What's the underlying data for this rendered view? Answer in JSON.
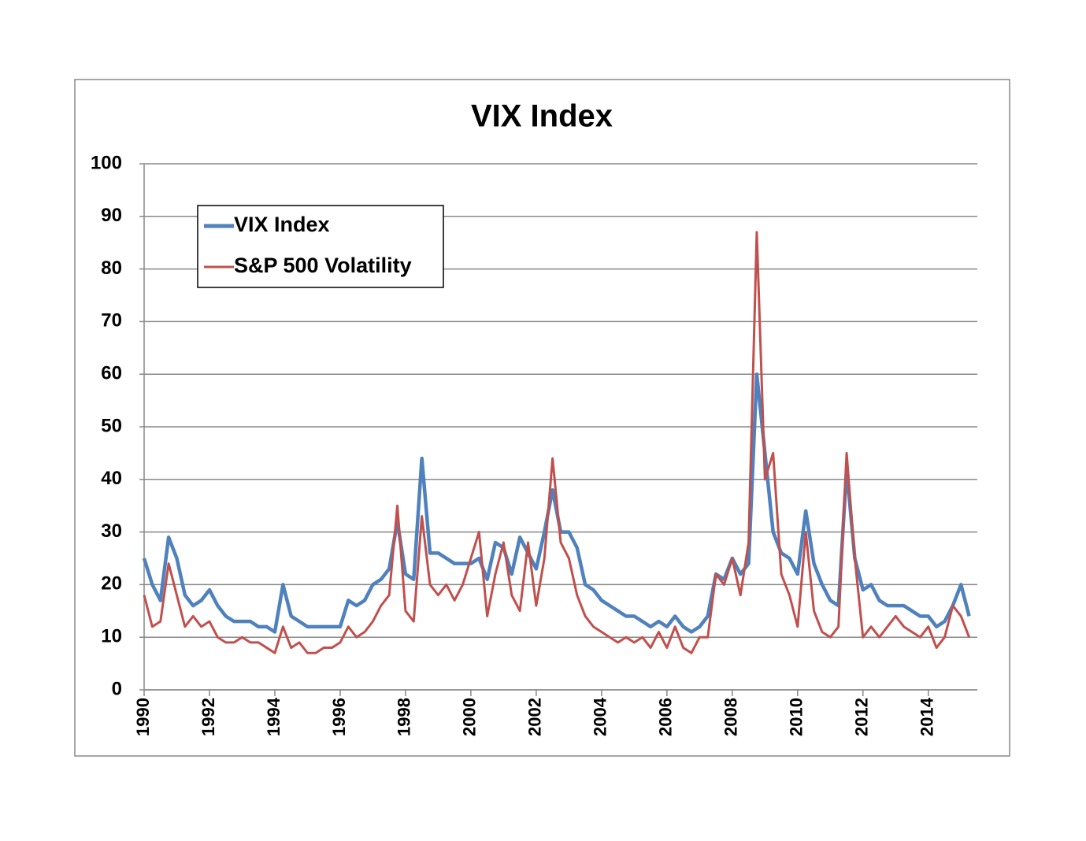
{
  "chart_data": {
    "type": "line",
    "title": "VIX Index",
    "x": [
      1990,
      1990.25,
      1990.5,
      1990.75,
      1991,
      1991.25,
      1991.5,
      1991.75,
      1992,
      1992.25,
      1992.5,
      1992.75,
      1993,
      1993.25,
      1993.5,
      1993.75,
      1994,
      1994.25,
      1994.5,
      1994.75,
      1995,
      1995.25,
      1995.5,
      1995.75,
      1996,
      1996.25,
      1996.5,
      1996.75,
      1997,
      1997.25,
      1997.5,
      1997.75,
      1998,
      1998.25,
      1998.5,
      1998.75,
      1999,
      1999.25,
      1999.5,
      1999.75,
      2000,
      2000.25,
      2000.5,
      2000.75,
      2001,
      2001.25,
      2001.5,
      2001.75,
      2002,
      2002.25,
      2002.5,
      2002.75,
      2003,
      2003.25,
      2003.5,
      2003.75,
      2004,
      2004.25,
      2004.5,
      2004.75,
      2005,
      2005.25,
      2005.5,
      2005.75,
      2006,
      2006.25,
      2006.5,
      2006.75,
      2007,
      2007.25,
      2007.5,
      2007.75,
      2008,
      2008.25,
      2008.5,
      2008.75,
      2009,
      2009.25,
      2009.5,
      2009.75,
      2010,
      2010.25,
      2010.5,
      2010.75,
      2011,
      2011.25,
      2011.5,
      2011.75,
      2012,
      2012.25,
      2012.5,
      2012.75,
      2013,
      2013.25,
      2013.5,
      2013.75,
      2014,
      2014.25,
      2014.5,
      2014.75,
      2015,
      2015.25
    ],
    "series": [
      {
        "name": "VIX Index",
        "color": "#4f81bd",
        "values": [
          25,
          20,
          17,
          29,
          25,
          18,
          16,
          17,
          19,
          16,
          14,
          13,
          13,
          13,
          12,
          12,
          11,
          20,
          14,
          13,
          12,
          12,
          12,
          12,
          12,
          17,
          16,
          17,
          20,
          21,
          23,
          32,
          22,
          21,
          44,
          26,
          26,
          25,
          24,
          24,
          24,
          25,
          21,
          28,
          27,
          22,
          29,
          26,
          23,
          30,
          38,
          30,
          30,
          27,
          20,
          19,
          17,
          16,
          15,
          14,
          14,
          13,
          12,
          13,
          12,
          14,
          12,
          11,
          12,
          14,
          22,
          21,
          25,
          22,
          24,
          60,
          45,
          30,
          26,
          25,
          22,
          34,
          24,
          20,
          17,
          16,
          42,
          25,
          19,
          20,
          17,
          16,
          16,
          16,
          15,
          14,
          14,
          12,
          13,
          16,
          20,
          14
        ]
      },
      {
        "name": "S&P 500 Volatility",
        "color": "#c0504d",
        "values": [
          18,
          12,
          13,
          24,
          18,
          12,
          14,
          12,
          13,
          10,
          9,
          9,
          10,
          9,
          9,
          8,
          7,
          12,
          8,
          9,
          7,
          7,
          8,
          8,
          9,
          12,
          10,
          11,
          13,
          16,
          18,
          35,
          15,
          13,
          33,
          20,
          18,
          20,
          17,
          20,
          25,
          30,
          14,
          22,
          28,
          18,
          15,
          28,
          16,
          25,
          44,
          28,
          25,
          18,
          14,
          12,
          11,
          10,
          9,
          10,
          9,
          10,
          8,
          11,
          8,
          12,
          8,
          7,
          10,
          10,
          22,
          20,
          25,
          18,
          28,
          87,
          40,
          45,
          22,
          18,
          12,
          30,
          15,
          11,
          10,
          12,
          45,
          25,
          10,
          12,
          10,
          12,
          14,
          12,
          11,
          10,
          12,
          8,
          10,
          16,
          14,
          10
        ]
      }
    ],
    "xlim": [
      1990,
      2015.5
    ],
    "xticks": [
      1990,
      1992,
      1994,
      1996,
      1998,
      2000,
      2002,
      2004,
      2006,
      2008,
      2010,
      2012,
      2014
    ],
    "ylim": [
      0,
      100
    ],
    "yticks": [
      0,
      10,
      20,
      30,
      40,
      50,
      60,
      70,
      80,
      90,
      100
    ],
    "grid": true,
    "legend": "top-left"
  }
}
